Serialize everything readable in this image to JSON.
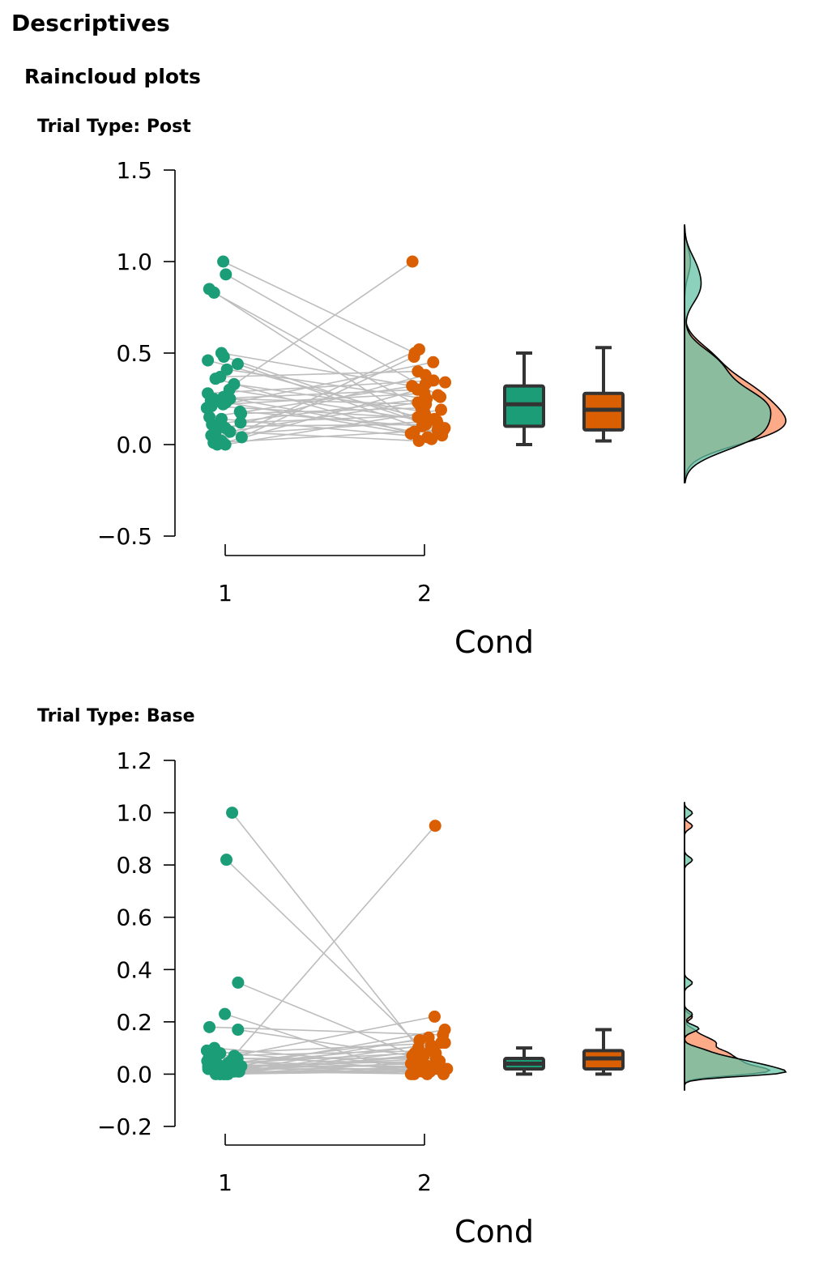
{
  "header": {
    "title": "Descriptives",
    "subtitle": "Raincloud plots"
  },
  "colors": {
    "group1": "#1b9e77",
    "group2": "#d95f02",
    "group1_density": "#66c2a5",
    "group2_density": "#fc8d62",
    "line": "#bdbdbd"
  },
  "chart_data": [
    {
      "type": "scatter",
      "title": "Trial Type: Post",
      "xlabel": "Cond",
      "ylabel": "",
      "categories": [
        "1",
        "2"
      ],
      "ylim": [
        -0.5,
        1.5
      ],
      "yticks": [
        "−0.5",
        "0.0",
        "0.5",
        "1.0",
        "1.5"
      ],
      "ytick_values": [
        -0.5,
        0.0,
        0.5,
        1.0,
        1.5
      ],
      "series": [
        {
          "values": [
            1.0,
            0.93,
            0.85,
            0.83,
            0.5,
            0.48,
            0.46,
            0.44,
            0.41,
            0.37,
            0.36,
            0.33,
            0.3,
            0.28,
            0.26,
            0.25,
            0.25,
            0.24,
            0.23,
            0.22,
            0.21,
            0.2,
            0.18,
            0.17,
            0.15,
            0.14,
            0.12,
            0.11,
            0.1,
            0.09,
            0.07,
            0.06,
            0.05,
            0.04,
            0.02,
            0.01,
            0.0,
            0.0
          ]
        },
        {
          "values": [
            0.5,
            0.27,
            0.1,
            0.2,
            0.32,
            0.08,
            0.15,
            0.05,
            0.25,
            0.4,
            0.03,
            0.18,
            0.12,
            0.35,
            0.07,
            0.3,
            0.22,
            1.0,
            0.06,
            0.28,
            0.14,
            0.45,
            0.09,
            0.2,
            0.33,
            0.04,
            0.16,
            0.26,
            0.11,
            0.38,
            0.02,
            0.23,
            0.13,
            0.48,
            0.52,
            0.08,
            0.19,
            0.34
          ]
        }
      ],
      "boxplots": [
        {
          "min": 0.0,
          "q1": 0.1,
          "median": 0.22,
          "q3": 0.32,
          "max": 0.5
        },
        {
          "min": 0.02,
          "q1": 0.08,
          "median": 0.19,
          "q3": 0.28,
          "max": 0.53
        }
      ],
      "density_range": [
        -0.2,
        1.2
      ]
    },
    {
      "type": "scatter",
      "title": "Trial Type: Base",
      "xlabel": "Cond",
      "ylabel": "",
      "categories": [
        "1",
        "2"
      ],
      "ylim": [
        -0.2,
        1.2
      ],
      "yticks": [
        "−0.2",
        "0.0",
        "0.2",
        "0.4",
        "0.6",
        "0.8",
        "1.0",
        "1.2"
      ],
      "ytick_values": [
        -0.2,
        0.0,
        0.2,
        0.4,
        0.6,
        0.8,
        1.0,
        1.2
      ],
      "series": [
        {
          "values": [
            1.0,
            0.82,
            0.35,
            0.23,
            0.18,
            0.17,
            0.1,
            0.09,
            0.08,
            0.07,
            0.07,
            0.06,
            0.06,
            0.05,
            0.05,
            0.05,
            0.04,
            0.04,
            0.04,
            0.03,
            0.03,
            0.03,
            0.03,
            0.02,
            0.02,
            0.02,
            0.02,
            0.01,
            0.01,
            0.01,
            0.01,
            0.0,
            0.0,
            0.0,
            0.0,
            0.0,
            0.0,
            0.0
          ]
        },
        {
          "values": [
            0.1,
            0.05,
            0.02,
            0.0,
            0.15,
            0.07,
            0.03,
            0.01,
            0.12,
            0.09,
            0.95,
            0.04,
            0.06,
            0.0,
            0.02,
            0.22,
            0.08,
            0.01,
            0.13,
            0.03,
            0.05,
            0.0,
            0.11,
            0.17,
            0.06,
            0.02,
            0.04,
            0.07,
            0.01,
            0.09,
            0.0,
            0.03,
            0.12,
            0.05,
            0.02,
            0.08,
            0.01,
            0.14
          ]
        }
      ],
      "boxplots": [
        {
          "min": 0.0,
          "q1": 0.02,
          "median": 0.04,
          "q3": 0.06,
          "max": 0.1
        },
        {
          "min": 0.0,
          "q1": 0.02,
          "median": 0.06,
          "q3": 0.09,
          "max": 0.17
        }
      ],
      "density_range": [
        -0.06,
        1.04
      ]
    }
  ]
}
